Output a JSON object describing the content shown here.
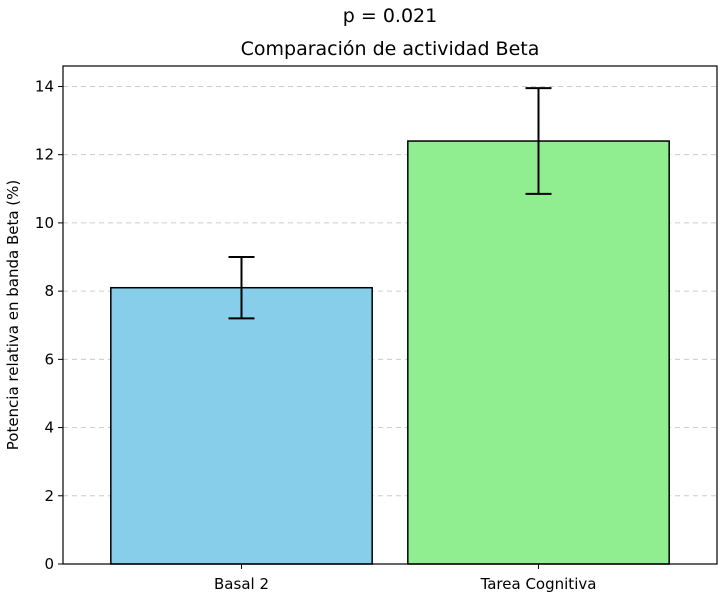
{
  "chart_data": {
    "type": "bar",
    "subtitle": "p = 0.021",
    "title": "Comparación de actividad Beta",
    "xlabel": "",
    "ylabel": "Potencia relativa en banda Beta (%)",
    "categories": [
      "Basal 2",
      "Tarea Cognitiva"
    ],
    "values": [
      8.1,
      12.4
    ],
    "errors": [
      0.9,
      1.55
    ],
    "colors": [
      "#87ceeb",
      "#90ee90"
    ],
    "edge_color": "#000000",
    "ylim": [
      0,
      14.6
    ],
    "yticks": [
      "0",
      "2",
      "4",
      "6",
      "8",
      "10",
      "12",
      "14"
    ],
    "grid": "y-dashed",
    "legend": "none"
  }
}
